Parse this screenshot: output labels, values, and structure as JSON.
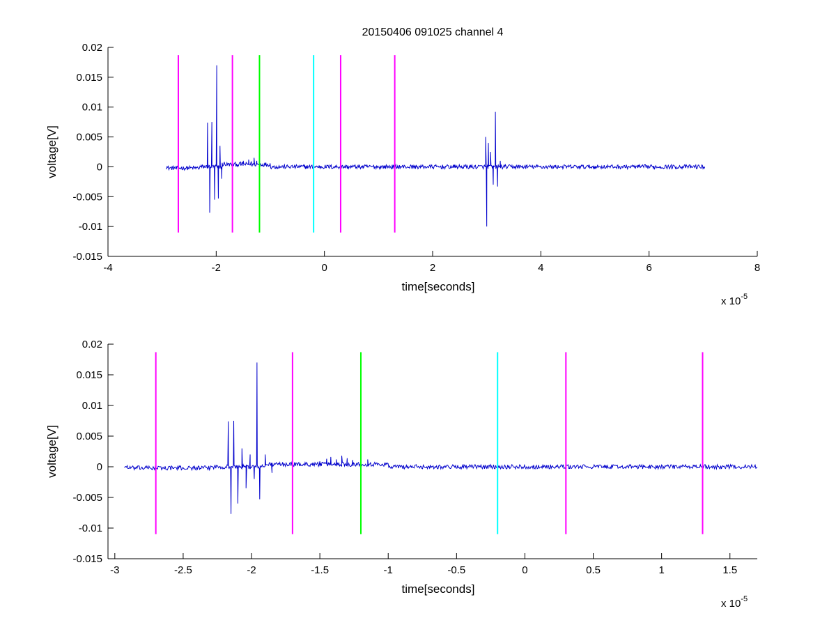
{
  "chart_data": [
    {
      "type": "line",
      "title": "20150406 091025 channel 4",
      "xlabel": "time[seconds]",
      "ylabel": "voltage[V]",
      "xlim": [
        -4,
        8
      ],
      "ylim": [
        -0.015,
        0.02
      ],
      "xticks": [
        -4,
        -2,
        0,
        2,
        4,
        6,
        8
      ],
      "xtick_labels": [
        "-4",
        "-2",
        "0",
        "2",
        "4",
        "6",
        "8"
      ],
      "yticks": [
        -0.015,
        -0.01,
        -0.005,
        0,
        0.005,
        0.01,
        0.015,
        0.02
      ],
      "ytick_labels": [
        "-0.015",
        "-0.01",
        "-0.005",
        "0",
        "0.005",
        "0.01",
        "0.015",
        "0.02"
      ],
      "x_scale_note": {
        "prefix": "x 10",
        "exponent": "-5"
      },
      "grid": false,
      "signal": {
        "color": "#0000cc",
        "x_range": [
          -2.93,
          7.03
        ],
        "bursts": [
          {
            "x": [
              -2.16,
              -2.12,
              -2.08,
              -2.03,
              -1.99,
              -1.96,
              -1.93,
              -1.9,
              -1.85
            ],
            "y": [
              0.0074,
              -0.0077,
              0.0075,
              -0.0055,
              0.017,
              -0.0053,
              0.0035,
              -0.002,
              0.0008
            ]
          },
          {
            "x": [
              -1.55,
              -1.5,
              -1.45,
              -1.4,
              -1.35,
              -1.3,
              -1.25,
              -1.2
            ],
            "y": [
              0.0008,
              0.001,
              0.0006,
              0.0012,
              0.0009,
              0.0015,
              0.001,
              0.0008
            ]
          },
          {
            "x": [
              2.98,
              3.0,
              3.03,
              3.07,
              3.12,
              3.16,
              3.2,
              3.25
            ],
            "y": [
              0.005,
              -0.01,
              0.004,
              0.0025,
              -0.003,
              0.0092,
              -0.0033,
              0.001
            ]
          }
        ]
      },
      "markers": [
        {
          "x": -2.7,
          "color": "#ff00ff"
        },
        {
          "x": -1.7,
          "color": "#ff00ff"
        },
        {
          "x": -1.2,
          "color": "#00ff00"
        },
        {
          "x": -0.2,
          "color": "#00ffff"
        },
        {
          "x": 0.3,
          "color": "#ff00ff"
        },
        {
          "x": 1.3,
          "color": "#ff00ff"
        }
      ],
      "marker_yrange": [
        -0.011,
        0.0187
      ]
    },
    {
      "type": "line",
      "title": "",
      "xlabel": "time[seconds]",
      "ylabel": "voltage[V]",
      "xlim": [
        -3.05,
        1.7
      ],
      "ylim": [
        -0.015,
        0.02
      ],
      "xticks": [
        -3,
        -2.5,
        -2,
        -1.5,
        -1,
        -0.5,
        0,
        0.5,
        1,
        1.5
      ],
      "xtick_labels": [
        "-3",
        "-2.5",
        "-2",
        "-1.5",
        "-1",
        "-0.5",
        "0",
        "0.5",
        "1",
        "1.5"
      ],
      "yticks": [
        -0.015,
        -0.01,
        -0.005,
        0,
        0.005,
        0.01,
        0.015,
        0.02
      ],
      "ytick_labels": [
        "-0.015",
        "-0.01",
        "-0.005",
        "0",
        "0.005",
        "0.01",
        "0.015",
        "0.02"
      ],
      "x_scale_note": {
        "prefix": "x 10",
        "exponent": "-5"
      },
      "grid": false,
      "signal": {
        "color": "#0000cc",
        "x_range": [
          -2.93,
          1.7
        ],
        "bursts": [
          {
            "x": [
              -2.17,
              -2.15,
              -2.13,
              -2.1,
              -2.07,
              -2.04,
              -2.01,
              -1.98,
              -1.96,
              -1.94,
              -1.9,
              -1.85
            ],
            "y": [
              0.0074,
              -0.0077,
              0.0075,
              -0.006,
              0.003,
              -0.0035,
              0.002,
              -0.002,
              0.017,
              -0.0053,
              0.002,
              -0.001
            ]
          },
          {
            "x": [
              -1.55,
              -1.5,
              -1.45,
              -1.42,
              -1.38,
              -1.34,
              -1.3,
              -1.26,
              -1.2,
              -1.15
            ],
            "y": [
              0.0006,
              0.0009,
              0.0013,
              0.0016,
              0.0012,
              0.0018,
              0.0014,
              0.0011,
              0.0009,
              0.0012
            ]
          }
        ]
      },
      "markers": [
        {
          "x": -2.7,
          "color": "#ff00ff"
        },
        {
          "x": -1.7,
          "color": "#ff00ff"
        },
        {
          "x": -1.2,
          "color": "#00ff00"
        },
        {
          "x": -0.2,
          "color": "#00ffff"
        },
        {
          "x": 0.3,
          "color": "#ff00ff"
        },
        {
          "x": 1.3,
          "color": "#ff00ff"
        }
      ],
      "marker_yrange": [
        -0.011,
        0.0187
      ]
    }
  ]
}
